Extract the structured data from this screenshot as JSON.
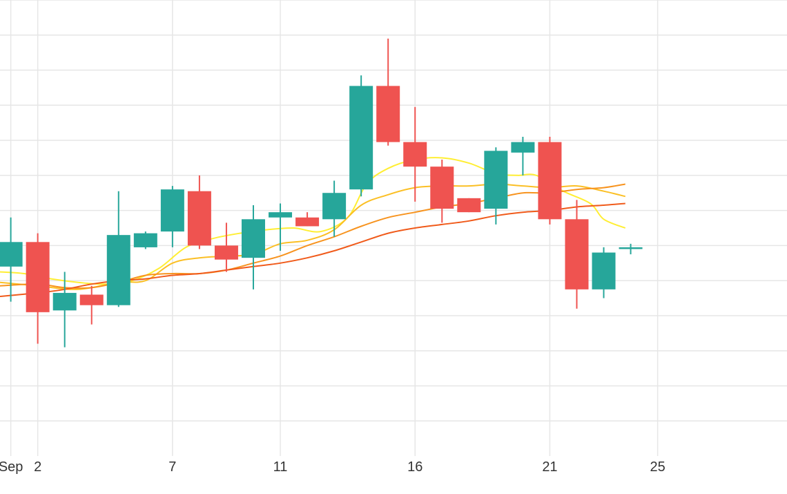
{
  "colors": {
    "background": "#ffffff",
    "grid": "#e6e6e6",
    "up": "#26a69a",
    "down": "#ef5350",
    "ma": [
      "#ffee33",
      "#fbbf24",
      "#f7931e",
      "#f05a1a"
    ],
    "axis_text": "#333333"
  },
  "chart_data": {
    "type": "candlestick",
    "title": "",
    "xlabel": "",
    "ylabel": "",
    "x_ticks": [
      {
        "day": 1,
        "label": "Sep"
      },
      {
        "day": 2,
        "label": "2"
      },
      {
        "day": 7,
        "label": "7"
      },
      {
        "day": 11,
        "label": "11"
      },
      {
        "day": 16,
        "label": "16"
      },
      {
        "day": 21,
        "label": "21"
      },
      {
        "day": 25,
        "label": "25"
      }
    ],
    "xlim": [
      0.6,
      29.8
    ],
    "ylim": [
      0,
      13
    ],
    "y_grid": [
      1,
      2,
      3,
      4,
      5,
      6,
      7,
      8,
      9,
      10,
      11,
      12,
      13
    ],
    "candles": [
      {
        "day": 1,
        "open": 5.4,
        "high": 6.8,
        "low": 4.4,
        "close": 6.1
      },
      {
        "day": 2,
        "open": 6.1,
        "high": 6.35,
        "low": 3.2,
        "close": 4.1
      },
      {
        "day": 3,
        "open": 4.15,
        "high": 5.25,
        "low": 3.1,
        "close": 4.65
      },
      {
        "day": 4,
        "open": 4.6,
        "high": 4.85,
        "low": 3.75,
        "close": 4.3
      },
      {
        "day": 5,
        "open": 4.3,
        "high": 7.55,
        "low": 4.25,
        "close": 6.3
      },
      {
        "day": 6,
        "open": 5.95,
        "high": 6.4,
        "low": 5.9,
        "close": 6.35
      },
      {
        "day": 7,
        "open": 6.4,
        "high": 7.7,
        "low": 5.95,
        "close": 7.6
      },
      {
        "day": 8,
        "open": 7.55,
        "high": 8.0,
        "low": 5.9,
        "close": 6.0
      },
      {
        "day": 9,
        "open": 6.0,
        "high": 6.65,
        "low": 5.25,
        "close": 5.6
      },
      {
        "day": 10,
        "open": 5.65,
        "high": 7.15,
        "low": 4.75,
        "close": 6.75
      },
      {
        "day": 11,
        "open": 6.8,
        "high": 7.2,
        "low": 5.85,
        "close": 6.95
      },
      {
        "day": 12,
        "open": 6.8,
        "high": 6.95,
        "low": 6.55,
        "close": 6.55
      },
      {
        "day": 13,
        "open": 6.75,
        "high": 7.85,
        "low": 6.25,
        "close": 7.5
      },
      {
        "day": 14,
        "open": 7.6,
        "high": 10.85,
        "low": 7.4,
        "close": 10.55
      },
      {
        "day": 15,
        "open": 10.55,
        "high": 11.9,
        "low": 8.85,
        "close": 8.95
      },
      {
        "day": 16,
        "open": 8.95,
        "high": 9.95,
        "low": 7.25,
        "close": 8.25
      },
      {
        "day": 17,
        "open": 8.25,
        "high": 8.45,
        "low": 6.65,
        "close": 7.05
      },
      {
        "day": 18,
        "open": 7.35,
        "high": 7.35,
        "low": 6.95,
        "close": 6.95
      },
      {
        "day": 19,
        "open": 7.05,
        "high": 8.8,
        "low": 6.6,
        "close": 8.7
      },
      {
        "day": 20,
        "open": 8.65,
        "high": 9.1,
        "low": 8.0,
        "close": 8.95
      },
      {
        "day": 21,
        "open": 8.95,
        "high": 9.1,
        "low": 6.6,
        "close": 6.75
      },
      {
        "day": 22,
        "open": 6.75,
        "high": 7.3,
        "low": 4.2,
        "close": 4.75
      },
      {
        "day": 23,
        "open": 4.75,
        "high": 5.95,
        "low": 4.5,
        "close": 5.8
      },
      {
        "day": 24,
        "open": 5.9,
        "high": 6.05,
        "low": 5.75,
        "close": 5.95
      }
    ],
    "moving_averages": [
      {
        "values": [
          [
            0.6,
            5.25
          ],
          [
            1.5,
            5.2
          ],
          [
            2.5,
            5.05
          ],
          [
            3.5,
            4.95
          ],
          [
            4.5,
            4.9
          ],
          [
            5.5,
            5.0
          ],
          [
            6.5,
            5.35
          ],
          [
            7.5,
            5.95
          ],
          [
            8.5,
            6.2
          ],
          [
            9.5,
            6.35
          ],
          [
            10.5,
            6.45
          ],
          [
            11.5,
            6.5
          ],
          [
            12.5,
            6.4
          ],
          [
            13.5,
            6.8
          ],
          [
            14.2,
            7.75
          ],
          [
            15,
            8.2
          ],
          [
            16,
            8.45
          ],
          [
            17,
            8.5
          ],
          [
            18,
            8.35
          ],
          [
            19,
            8.05
          ],
          [
            19.8,
            8.0
          ],
          [
            20.5,
            8.0
          ],
          [
            21.5,
            7.55
          ],
          [
            22.5,
            7.2
          ],
          [
            23,
            6.75
          ],
          [
            23.8,
            6.5
          ]
        ]
      },
      {
        "values": [
          [
            0.6,
            4.95
          ],
          [
            2,
            4.85
          ],
          [
            3.5,
            4.75
          ],
          [
            5,
            4.95
          ],
          [
            6,
            5.0
          ],
          [
            7,
            5.5
          ],
          [
            8,
            5.65
          ],
          [
            9,
            5.7
          ],
          [
            10,
            5.75
          ],
          [
            11,
            6.05
          ],
          [
            12,
            6.15
          ],
          [
            13,
            6.45
          ],
          [
            14,
            7.15
          ],
          [
            15,
            7.45
          ],
          [
            16,
            7.65
          ],
          [
            17,
            7.7
          ],
          [
            18,
            7.7
          ],
          [
            19,
            7.75
          ],
          [
            20,
            7.7
          ],
          [
            21,
            7.65
          ],
          [
            22,
            7.7
          ],
          [
            23,
            7.55
          ],
          [
            23.8,
            7.4
          ]
        ]
      },
      {
        "values": [
          [
            0.6,
            4.85
          ],
          [
            2,
            4.9
          ],
          [
            3,
            4.8
          ],
          [
            4,
            4.8
          ],
          [
            5,
            4.95
          ],
          [
            6,
            5.15
          ],
          [
            7,
            5.2
          ],
          [
            8,
            5.2
          ],
          [
            9,
            5.3
          ],
          [
            10,
            5.5
          ],
          [
            11,
            5.7
          ],
          [
            12,
            6.0
          ],
          [
            13,
            6.25
          ],
          [
            14,
            6.55
          ],
          [
            15,
            6.8
          ],
          [
            16,
            6.95
          ],
          [
            17,
            7.1
          ],
          [
            18,
            7.2
          ],
          [
            19,
            7.35
          ],
          [
            20,
            7.5
          ],
          [
            21,
            7.5
          ],
          [
            22,
            7.6
          ],
          [
            23,
            7.65
          ],
          [
            23.8,
            7.75
          ]
        ]
      },
      {
        "values": [
          [
            0.6,
            4.55
          ],
          [
            2,
            4.65
          ],
          [
            3,
            4.75
          ],
          [
            4,
            4.9
          ],
          [
            5,
            5.0
          ],
          [
            6,
            5.05
          ],
          [
            7,
            5.15
          ],
          [
            8,
            5.2
          ],
          [
            9,
            5.3
          ],
          [
            10,
            5.4
          ],
          [
            11,
            5.5
          ],
          [
            12,
            5.65
          ],
          [
            13,
            5.85
          ],
          [
            14,
            6.1
          ],
          [
            15,
            6.35
          ],
          [
            16,
            6.5
          ],
          [
            17,
            6.6
          ],
          [
            18,
            6.7
          ],
          [
            19,
            6.85
          ],
          [
            20,
            6.95
          ],
          [
            21,
            7.0
          ],
          [
            22,
            7.1
          ],
          [
            23,
            7.15
          ],
          [
            23.8,
            7.2
          ]
        ]
      }
    ],
    "grid": true,
    "legend": "none"
  }
}
